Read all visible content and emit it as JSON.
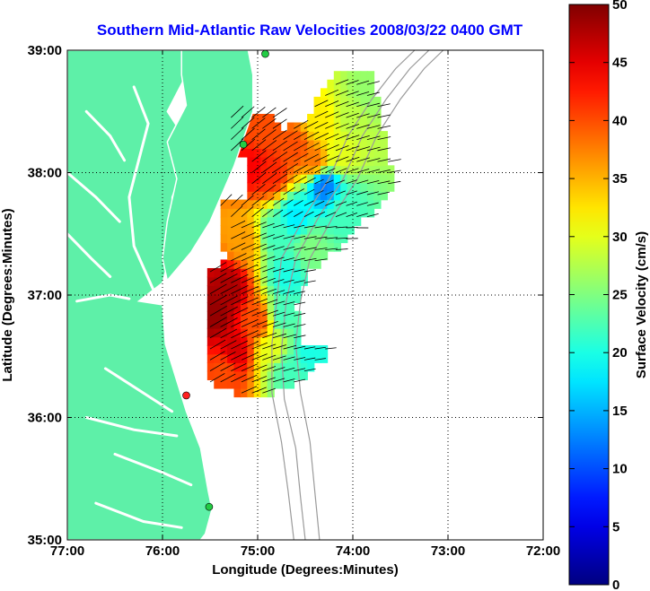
{
  "chart_data": {
    "type": "heatmap",
    "title": "Southern Mid-Atlantic Raw Velocities 2008/03/22 0400 GMT",
    "xlabel": "Longitude (Degrees:Minutes)",
    "ylabel": "Latitude (Degrees:Minutes)",
    "colorbar_label": "Surface Velocity (cm/s)",
    "x_ticks": [
      {
        "value": -77,
        "label": "77:00"
      },
      {
        "value": -76,
        "label": "76:00"
      },
      {
        "value": -75,
        "label": "75:00"
      },
      {
        "value": -74,
        "label": "74:00"
      },
      {
        "value": -73,
        "label": "73:00"
      },
      {
        "value": -72,
        "label": "72:00"
      }
    ],
    "y_ticks": [
      {
        "value": 35,
        "label": "35:00"
      },
      {
        "value": 36,
        "label": "36:00"
      },
      {
        "value": 37,
        "label": "37:00"
      },
      {
        "value": 38,
        "label": "38:00"
      },
      {
        "value": 39,
        "label": "39:00"
      }
    ],
    "xlim": [
      -77,
      -72
    ],
    "ylim": [
      35,
      39
    ],
    "grid": true,
    "colorbar_ticks": [
      "0",
      "5",
      "10",
      "15",
      "20",
      "25",
      "30",
      "35",
      "40",
      "45",
      "50"
    ],
    "clim": [
      0,
      50
    ],
    "colors": {
      "land": "#5ef0a8",
      "land_edge": "#ffffff",
      "bathymetry": "#9a9a9a",
      "station": "#22cc44",
      "station_highlight": "#ff2020",
      "title": "#0000ff"
    },
    "speed_field": [
      {
        "lon": -75.45,
        "lat": 36.85,
        "speed": 49
      },
      {
        "lon": -75.3,
        "lat": 37.05,
        "speed": 48
      },
      {
        "lon": -75.25,
        "lat": 36.55,
        "speed": 46
      },
      {
        "lon": -75.35,
        "lat": 36.4,
        "speed": 40
      },
      {
        "lon": -75.15,
        "lat": 37.45,
        "speed": 36
      },
      {
        "lon": -75.0,
        "lat": 36.8,
        "speed": 40
      },
      {
        "lon": -74.85,
        "lat": 36.55,
        "speed": 30
      },
      {
        "lon": -74.7,
        "lat": 36.4,
        "speed": 22
      },
      {
        "lon": -74.45,
        "lat": 36.55,
        "speed": 20
      },
      {
        "lon": -74.75,
        "lat": 36.85,
        "speed": 22
      },
      {
        "lon": -74.7,
        "lat": 37.15,
        "speed": 20
      },
      {
        "lon": -74.8,
        "lat": 37.5,
        "speed": 22
      },
      {
        "lon": -74.6,
        "lat": 37.65,
        "speed": 18
      },
      {
        "lon": -74.3,
        "lat": 37.9,
        "speed": 12
      },
      {
        "lon": -74.1,
        "lat": 37.7,
        "speed": 22
      },
      {
        "lon": -74.45,
        "lat": 37.4,
        "speed": 25
      },
      {
        "lon": -74.15,
        "lat": 38.15,
        "speed": 30
      },
      {
        "lon": -74.0,
        "lat": 38.45,
        "speed": 28
      },
      {
        "lon": -73.85,
        "lat": 38.65,
        "speed": 26
      },
      {
        "lon": -74.4,
        "lat": 38.1,
        "speed": 38
      },
      {
        "lon": -74.6,
        "lat": 38.2,
        "speed": 40
      },
      {
        "lon": -74.85,
        "lat": 38.0,
        "speed": 42
      },
      {
        "lon": -75.05,
        "lat": 38.05,
        "speed": 44
      },
      {
        "lon": -74.95,
        "lat": 38.35,
        "speed": 40
      },
      {
        "lon": -74.35,
        "lat": 38.4,
        "speed": 32
      }
    ],
    "stations": [
      {
        "lon": -74.92,
        "lat": 38.97,
        "highlight": false
      },
      {
        "lon": -75.15,
        "lat": 38.23,
        "highlight": false
      },
      {
        "lon": -75.75,
        "lat": 36.18,
        "highlight": true
      },
      {
        "lon": -75.51,
        "lat": 35.27,
        "highlight": false
      }
    ]
  }
}
